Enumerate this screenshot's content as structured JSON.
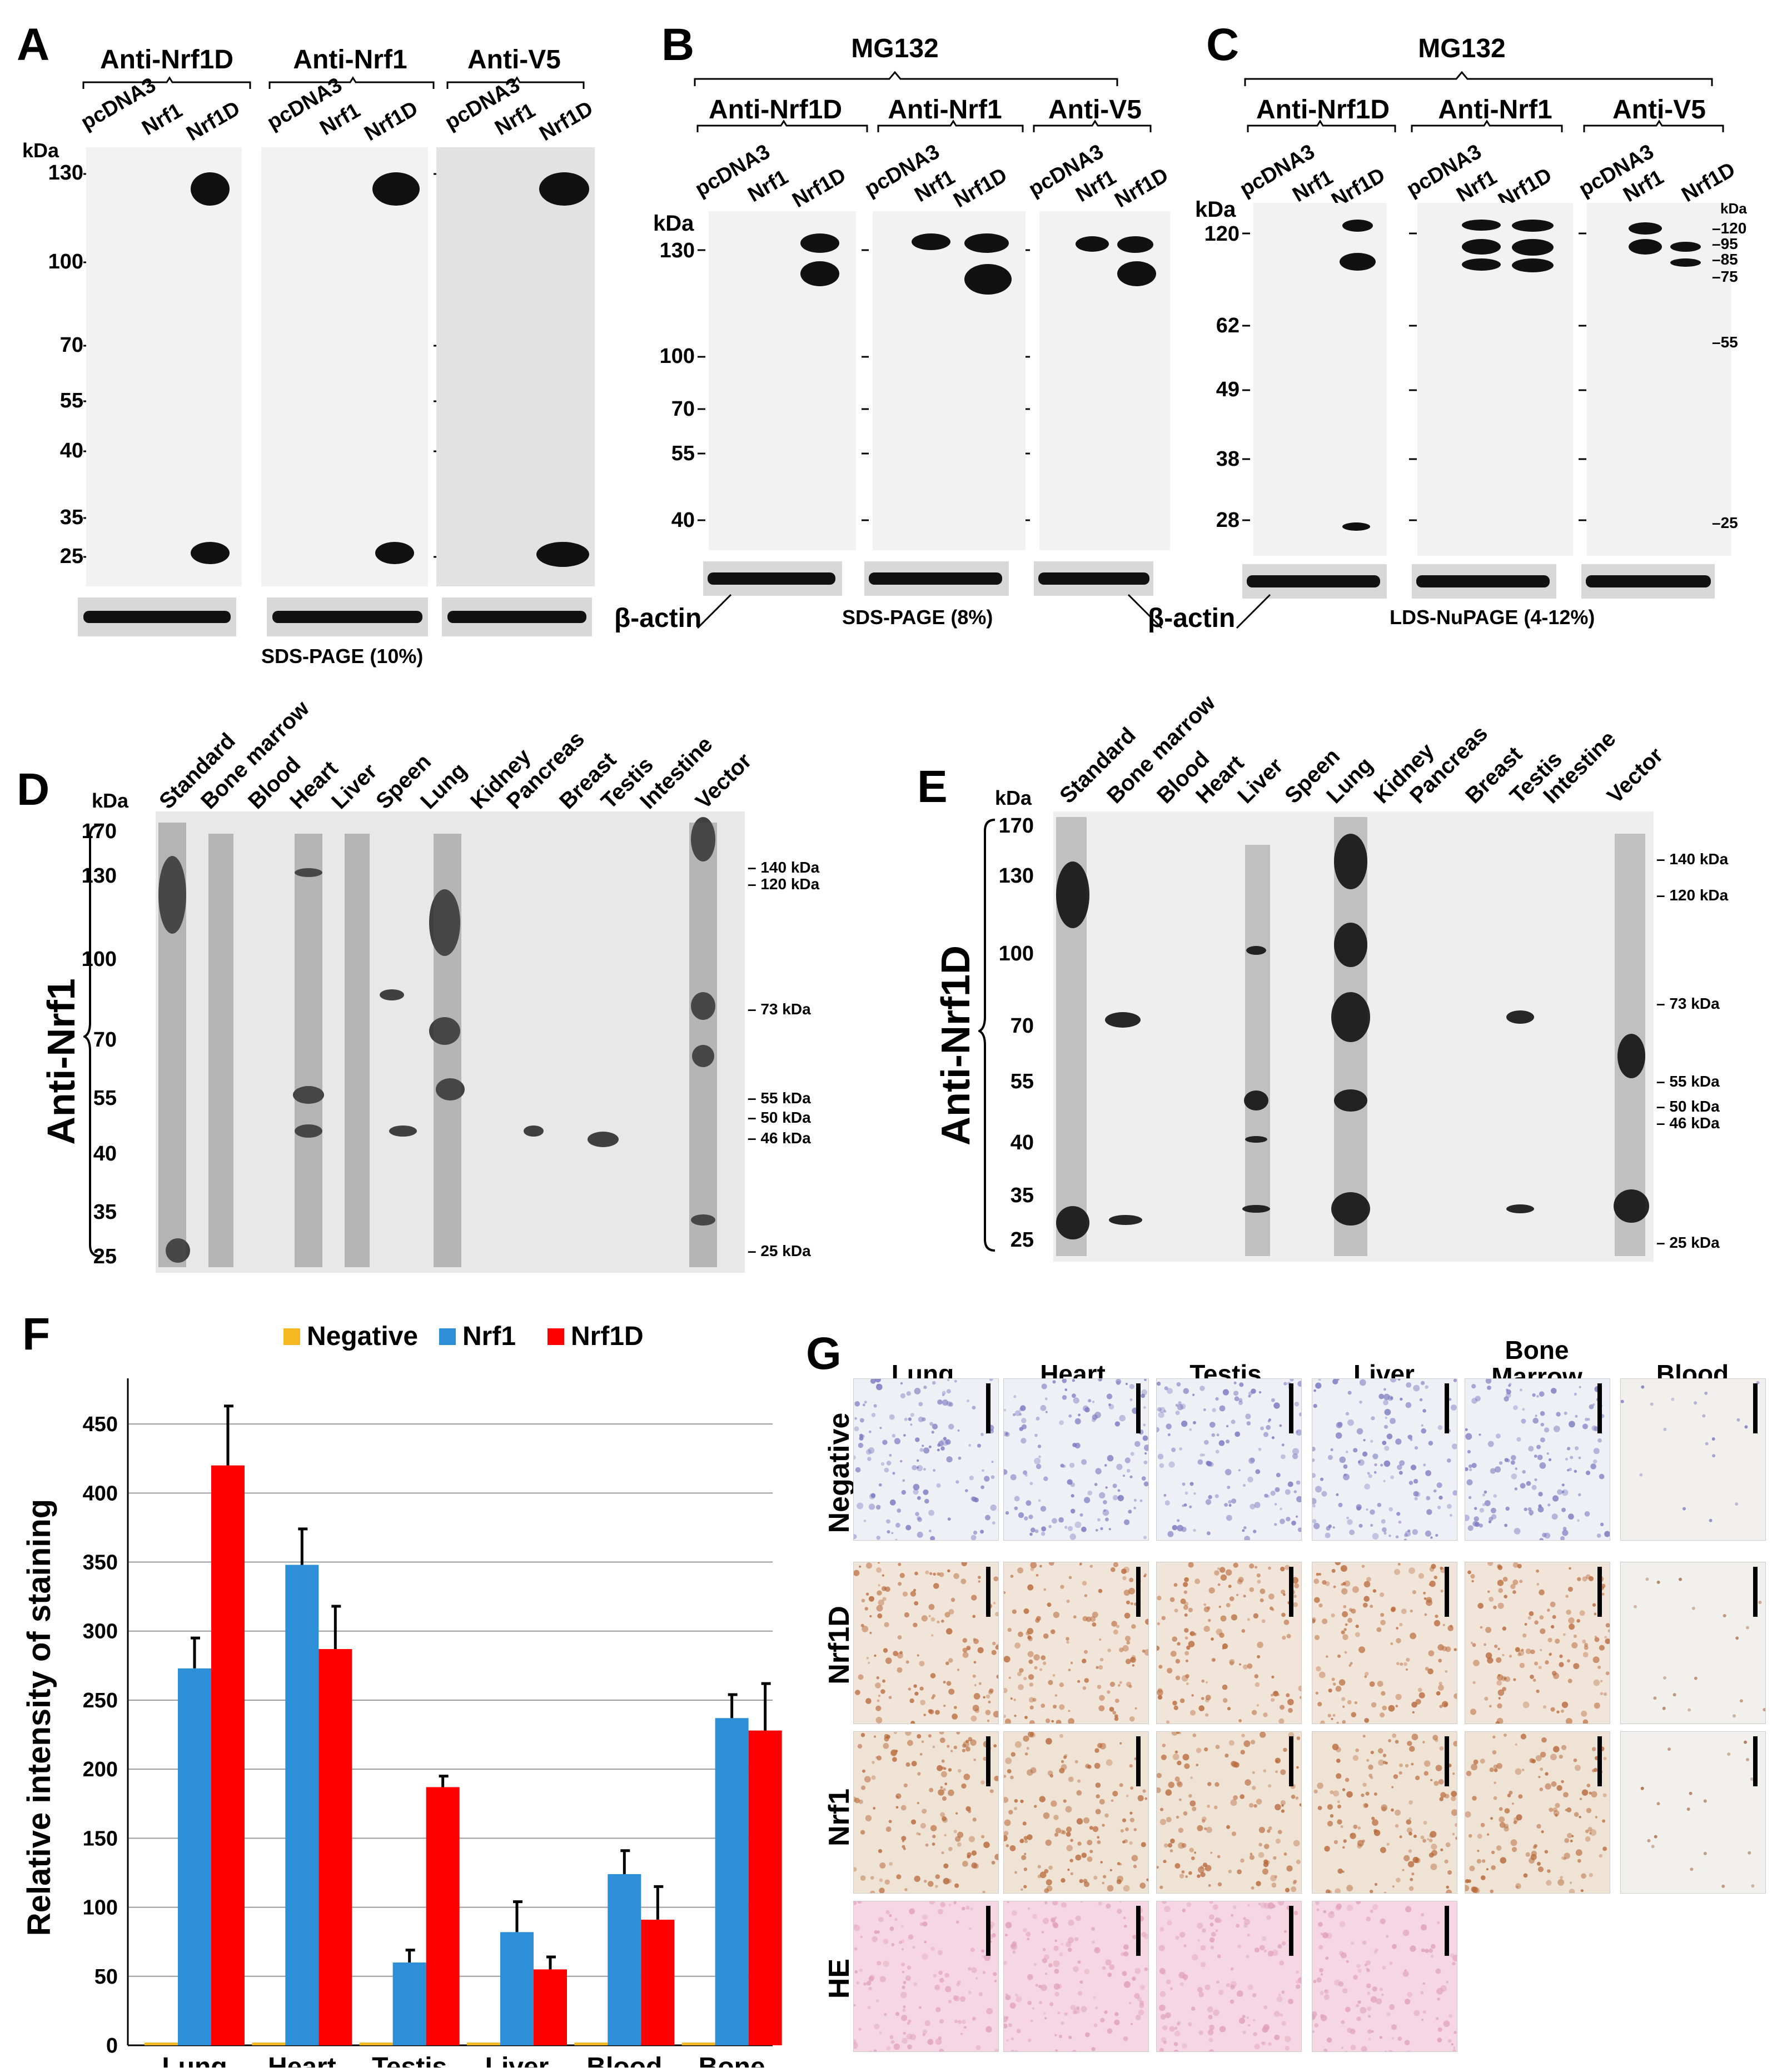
{
  "panelA": {
    "label": "A",
    "antibodies": [
      "Anti-Nrf1D",
      "Anti-Nrf1",
      "Anti-V5"
    ],
    "lanes": [
      "pcDNA3",
      "Nrf1",
      "Nrf1D"
    ],
    "unit": "kDa",
    "markers": [
      "130",
      "100",
      "70",
      "55",
      "40",
      "35",
      "25"
    ],
    "caption": "SDS-PAGE (10%)"
  },
  "panelB": {
    "label": "B",
    "treatment": "MG132",
    "antibodies": [
      "Anti-Nrf1D",
      "Anti-Nrf1",
      "Anti-V5"
    ],
    "lanes": [
      "pcDNA3",
      "Nrf1",
      "Nrf1D"
    ],
    "unit": "kDa",
    "markers": [
      "130",
      "100",
      "70",
      "55",
      "40"
    ],
    "loading": "β-actin",
    "caption": "SDS-PAGE (8%)"
  },
  "panelC": {
    "label": "C",
    "treatment": "MG132",
    "antibodies": [
      "Anti-Nrf1D",
      "Anti-Nrf1",
      "Anti-V5"
    ],
    "lanes": [
      "pcDNA3",
      "Nrf1",
      "Nrf1D"
    ],
    "unit": "kDa",
    "markers": [
      "120",
      "62",
      "49",
      "38",
      "28"
    ],
    "right_unit": "kDa",
    "right_markers": [
      "120",
      "95",
      "85",
      "75",
      "55",
      "25"
    ],
    "loading": "β-actin",
    "caption": "LDS-NuPAGE (4-12%)"
  },
  "panelD": {
    "label": "D",
    "antibody": "Anti-Nrf1",
    "unit": "kDa",
    "lanes": [
      "Standard",
      "Bone marrow",
      "Blood",
      "Heart",
      "Liver",
      "Speen",
      "Lung",
      "Kidney",
      "Pancreas",
      "Breast",
      "Testis",
      "Intestine",
      "Vector"
    ],
    "markers": [
      "170",
      "130",
      "100",
      "70",
      "55",
      "40",
      "35",
      "25"
    ],
    "right_markers": [
      "140 kDa",
      "120 kDa",
      "73 kDa",
      "55 kDa",
      "50 kDa",
      "46 kDa",
      "25 kDa"
    ]
  },
  "panelE": {
    "label": "E",
    "antibody": "Anti-Nrf1D",
    "unit": "kDa",
    "lanes": [
      "Standard",
      "Bone marrow",
      "Blood",
      "Heart",
      "Liver",
      "Speen",
      "Lung",
      "Kidney",
      "Pancreas",
      "Breast",
      "Testis",
      "Intestine",
      "Vector"
    ],
    "markers": [
      "170",
      "130",
      "100",
      "70",
      "55",
      "40",
      "35",
      "25"
    ],
    "right_markers": [
      "140 kDa",
      "120 kDa",
      "73 kDa",
      "55 kDa",
      "50 kDa",
      "46 kDa",
      "25 kDa"
    ]
  },
  "panelF": {
    "label": "F"
  },
  "panelG": {
    "label": "G",
    "columns": [
      "Lung",
      "Heart",
      "Testis",
      "Liver",
      "Bone Marrow",
      "Blood"
    ],
    "rows": [
      "Negative",
      "Nrf1D",
      "Nrf1",
      "HE"
    ]
  },
  "colors": {
    "negative": "#f5b820",
    "nrf1": "#2e8fd9",
    "nrf1d": "#ff0000",
    "ihc_brown": "#b8693a",
    "ihc_blue": "#7a78c0",
    "he_pink": "#e0a0b8"
  },
  "chart_data": {
    "type": "bar",
    "title": "",
    "xlabel": "",
    "ylabel": "Relative intensity of staining",
    "ylim": [
      0,
      450
    ],
    "yticks": [
      0,
      50,
      100,
      150,
      200,
      250,
      300,
      350,
      400,
      450
    ],
    "grid": true,
    "legend": "top",
    "categories": [
      "Lung",
      "Heart",
      "Testis",
      "Liver",
      "Blood",
      "Bone Marrow"
    ],
    "series": [
      {
        "name": "Negative",
        "values": [
          2,
          2,
          2,
          2,
          2,
          2
        ],
        "errors": [
          0,
          0,
          0,
          0,
          0,
          0
        ]
      },
      {
        "name": "Nrf1",
        "values": [
          273,
          348,
          60,
          82,
          124,
          237
        ],
        "errors": [
          22,
          26,
          9,
          22,
          17,
          17
        ]
      },
      {
        "name": "Nrf1D",
        "values": [
          420,
          287,
          187,
          55,
          91,
          228
        ],
        "errors": [
          43,
          31,
          8,
          9,
          24,
          34
        ]
      }
    ]
  }
}
